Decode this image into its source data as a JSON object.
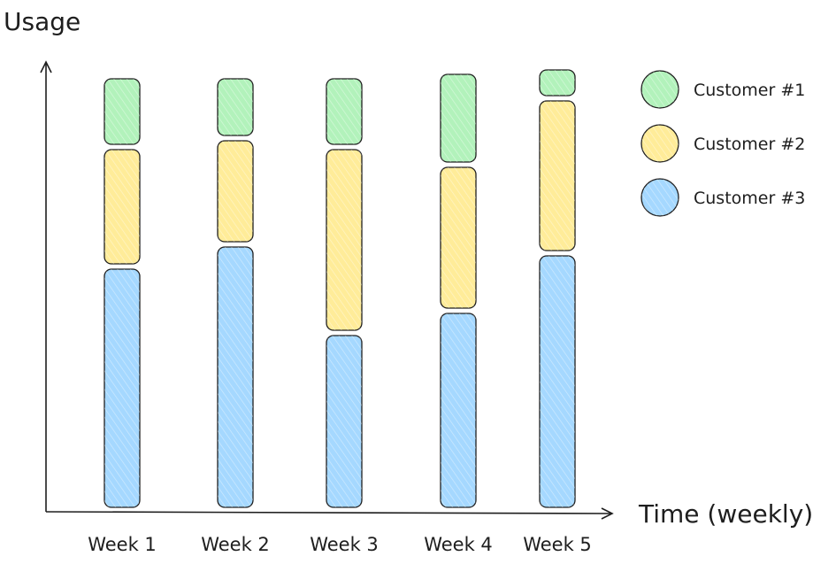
{
  "chart_data": {
    "type": "bar",
    "stacked": true,
    "title": "",
    "xlabel": "Time (weekly)",
    "ylabel": "Usage",
    "ylim": [
      0,
      100
    ],
    "grid": false,
    "legend_position": "top-right",
    "categories": [
      "Week 1",
      "Week 2",
      "Week 3",
      "Week 4",
      "Week 5"
    ],
    "series": [
      {
        "name": "Customer #3",
        "color": "#a5d8ff",
        "values": [
          55,
          60,
          40,
          45,
          58
        ]
      },
      {
        "name": "Customer #2",
        "color": "#ffec99",
        "values": [
          27,
          24,
          42,
          33,
          35
        ]
      },
      {
        "name": "Customer #1",
        "color": "#b2f2bb",
        "values": [
          16,
          14,
          16,
          21,
          7
        ]
      }
    ]
  }
}
